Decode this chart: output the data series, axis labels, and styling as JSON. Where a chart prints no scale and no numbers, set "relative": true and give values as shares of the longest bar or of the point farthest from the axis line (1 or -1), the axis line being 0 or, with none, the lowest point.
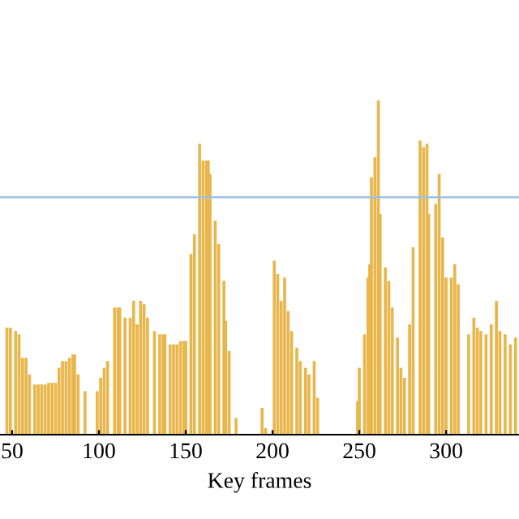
{
  "chart_data": {
    "type": "bar",
    "relative": true,
    "xlabel": "Key frames",
    "color": "#e8b64a",
    "xlim": [
      43,
      342
    ],
    "xticks": [
      50,
      100,
      150,
      200,
      250,
      300
    ],
    "x": [
      47,
      49,
      52,
      54,
      56,
      58,
      60,
      63,
      65,
      67,
      69,
      71,
      73,
      75,
      77,
      79,
      81,
      83,
      85,
      86,
      88,
      92,
      99,
      101,
      103,
      105,
      109,
      111,
      112,
      115,
      118,
      120,
      122,
      124,
      126,
      128,
      132,
      135,
      137,
      138,
      141,
      143,
      145,
      147,
      149,
      150,
      153,
      155,
      158,
      160,
      162,
      163,
      164,
      167,
      169,
      172,
      173,
      175,
      179,
      194,
      196,
      201,
      203,
      205,
      207,
      209,
      211,
      214,
      216,
      219,
      221,
      224,
      226,
      249,
      250,
      253,
      255,
      256,
      257,
      259,
      261,
      262,
      265,
      267,
      269,
      272,
      274,
      276,
      279,
      281,
      285,
      287,
      289,
      290,
      294,
      296,
      298,
      300,
      303,
      305,
      307,
      313,
      316,
      318,
      320,
      323,
      326,
      329,
      331,
      334,
      337,
      340
    ],
    "values": [
      0.32,
      0.32,
      0.31,
      0.3,
      0.23,
      0.23,
      0.18,
      0.15,
      0.15,
      0.15,
      0.15,
      0.155,
      0.155,
      0.155,
      0.2,
      0.22,
      0.22,
      0.23,
      0.24,
      0.24,
      0.18,
      0.13,
      0.13,
      0.17,
      0.2,
      0.22,
      0.38,
      0.38,
      0.38,
      0.35,
      0.35,
      0.4,
      0.33,
      0.4,
      0.39,
      0.35,
      0.31,
      0.3,
      0.3,
      0.3,
      0.27,
      0.27,
      0.27,
      0.28,
      0.28,
      0.28,
      0.54,
      0.6,
      0.87,
      0.82,
      0.82,
      0.82,
      0.78,
      0.64,
      0.57,
      0.46,
      0.34,
      0.25,
      0.05,
      0.08,
      0.02,
      0.52,
      0.48,
      0.4,
      0.47,
      0.37,
      0.31,
      0.26,
      0.22,
      0.2,
      0.18,
      0.22,
      0.11,
      0.1,
      0.2,
      0.3,
      0.47,
      0.51,
      0.77,
      0.83,
      1.0,
      0.66,
      0.5,
      0.46,
      0.38,
      0.29,
      0.2,
      0.17,
      0.33,
      0.56,
      0.88,
      0.86,
      0.87,
      0.66,
      0.69,
      0.78,
      0.59,
      0.47,
      0.47,
      0.51,
      0.45,
      0.3,
      0.35,
      0.32,
      0.31,
      0.3,
      0.33,
      0.4,
      0.31,
      0.3,
      0.27,
      0.29
    ],
    "ref_lines": [
      {
        "axis": "y",
        "value": 0.71,
        "color": "#9cc3e5"
      }
    ]
  }
}
